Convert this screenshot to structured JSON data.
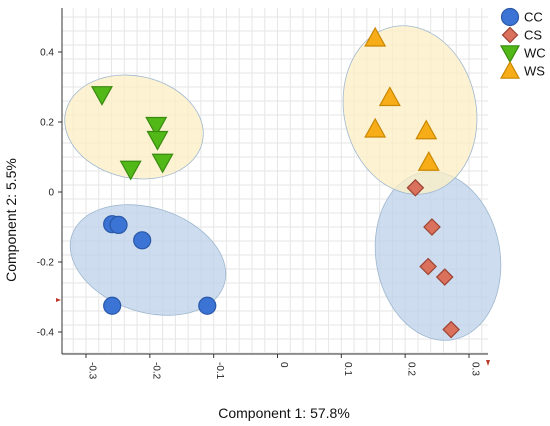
{
  "chart_data": {
    "type": "scatter",
    "xlabel": "Component 1: 57.8%",
    "ylabel": "Component 2: 5.5%",
    "xlim": [
      -0.33,
      0.33
    ],
    "ylim": [
      -0.48,
      0.5
    ],
    "x_ticks": [
      "-0.3",
      "-0.2",
      "-0.1",
      "0",
      "0.1",
      "0.2",
      "0.3"
    ],
    "y_ticks": [
      "0.4",
      "0.2",
      "0",
      "-0.2",
      "-0.4"
    ],
    "x_tick_values": [
      -0.3,
      -0.2,
      -0.1,
      0,
      0.1,
      0.2,
      0.3
    ],
    "y_tick_values": [
      0.4,
      0.2,
      0,
      -0.2,
      -0.4
    ],
    "grid": true,
    "legend_position": "top-right",
    "series": [
      {
        "name": "CC",
        "marker": "circle",
        "color": "#3b74d4",
        "edge": "#2a58a8",
        "points": [
          [
            -0.259,
            -0.092
          ],
          [
            -0.249,
            -0.094
          ],
          [
            -0.212,
            -0.138
          ],
          [
            -0.259,
            -0.325
          ],
          [
            -0.11,
            -0.325
          ]
        ],
        "ellipse": {
          "cx": -0.185,
          "cy": -0.195,
          "rx": 0.115,
          "ry": 0.175,
          "angle_deg": 115
        },
        "ellipse_color": "#bcd1ea"
      },
      {
        "name": "CS",
        "marker": "diamond",
        "color": "#d9715c",
        "edge": "#9c4232",
        "points": [
          [
            0.216,
            0.012
          ],
          [
            0.242,
            -0.1
          ],
          [
            0.236,
            -0.213
          ],
          [
            0.262,
            -0.243
          ],
          [
            0.272,
            -0.393
          ]
        ],
        "ellipse": {
          "cx": 0.24,
          "cy": -0.185,
          "rx": 0.225,
          "ry": 0.09,
          "angle_deg": 67
        },
        "ellipse_color": "#bcd1ea"
      },
      {
        "name": "WC",
        "marker": "triangle-down",
        "color": "#52b818",
        "edge": "#3a8a10",
        "points": [
          [
            -0.275,
            0.278
          ],
          [
            -0.19,
            0.19
          ],
          [
            -0.188,
            0.15
          ],
          [
            -0.18,
            0.085
          ],
          [
            -0.23,
            0.065
          ]
        ],
        "ellipse": {
          "cx": -0.205,
          "cy": 0.18,
          "rx": 0.17,
          "ry": 0.1,
          "angle_deg": 0
        },
        "ellipse_color": "#fcefc4"
      },
      {
        "name": "WS",
        "marker": "triangle-up",
        "color": "#f6ad18",
        "edge": "#c98600",
        "points": [
          [
            0.153,
            0.44
          ],
          [
            0.176,
            0.27
          ],
          [
            0.153,
            0.18
          ],
          [
            0.233,
            0.175
          ],
          [
            0.237,
            0.085
          ]
        ],
        "ellipse": {
          "cx": 0.187,
          "cy": 0.255,
          "rx": 0.225,
          "ry": 0.12,
          "angle_deg": 80
        },
        "ellipse_color": "#fcefc4"
      }
    ]
  }
}
